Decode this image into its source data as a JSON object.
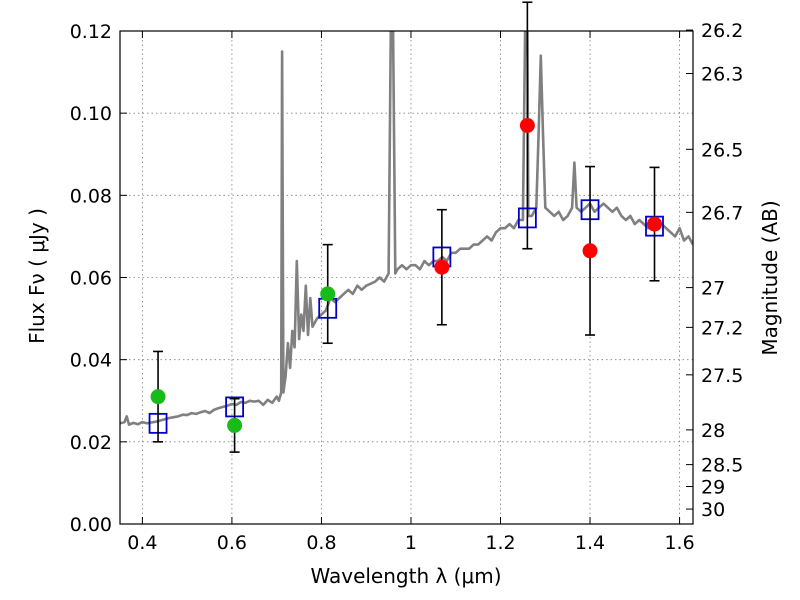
{
  "chart_data": {
    "type": "scatter",
    "xlabel": "Wavelength  λ (μm)",
    "ylabel": "Flux  Fν  ( μJy )",
    "ylabel_right": "Magnitude (AB)",
    "xlim": [
      0.35,
      1.63
    ],
    "ylim": [
      0.0,
      0.12
    ],
    "grid": true,
    "x_ticks": [
      0.4,
      0.6,
      0.8,
      1.0,
      1.2,
      1.4,
      1.6
    ],
    "x_tick_labels": [
      "0.4",
      "0.6",
      "0.8",
      "1",
      "1.2",
      "1.4",
      "1.6"
    ],
    "y_ticks": [
      0.0,
      0.02,
      0.04,
      0.06,
      0.08,
      0.1,
      0.12
    ],
    "y_tick_labels": [
      "0.00",
      "0.02",
      "0.04",
      "0.06",
      "0.08",
      "0.10",
      "0.12"
    ],
    "right_ticks": [
      {
        "label": "26.2",
        "mag": 26.2
      },
      {
        "label": "26.3",
        "mag": 26.3
      },
      {
        "label": "26.5",
        "mag": 26.5
      },
      {
        "label": "26.7",
        "mag": 26.7
      },
      {
        "label": "27",
        "mag": 27.0
      },
      {
        "label": "27.2",
        "mag": 27.2
      },
      {
        "label": "27.5",
        "mag": 27.5
      },
      {
        "label": "28",
        "mag": 28.0
      },
      {
        "label": "28.5",
        "mag": 28.5
      },
      {
        "label": "29",
        "mag": 29.0
      },
      {
        "label": "30",
        "mag": 30.0
      }
    ],
    "colors": {
      "model": "#808080",
      "green": "#18bb18",
      "red": "#ff0000",
      "box": "#0000cc",
      "errorbar": "#000000",
      "grid": "#7f7f7f"
    },
    "observations": [
      {
        "x": 0.435,
        "y": 0.031,
        "err": 0.011,
        "color": "green"
      },
      {
        "x": 0.606,
        "y": 0.024,
        "err": 0.0065,
        "color": "green"
      },
      {
        "x": 0.814,
        "y": 0.056,
        "err": 0.012,
        "color": "green"
      },
      {
        "x": 1.069,
        "y": 0.0625,
        "err": 0.014,
        "color": "red"
      },
      {
        "x": 1.26,
        "y": 0.097,
        "err": 0.03,
        "color": "red"
      },
      {
        "x": 1.4,
        "y": 0.0665,
        "err": 0.0205,
        "color": "red"
      },
      {
        "x": 1.544,
        "y": 0.073,
        "err": 0.0138,
        "color": "red"
      }
    ],
    "model_photometry": [
      {
        "x": 0.435,
        "y": 0.0245
      },
      {
        "x": 0.606,
        "y": 0.0285
      },
      {
        "x": 0.814,
        "y": 0.0525
      },
      {
        "x": 1.069,
        "y": 0.065
      },
      {
        "x": 1.26,
        "y": 0.0745
      },
      {
        "x": 1.4,
        "y": 0.0765
      },
      {
        "x": 1.544,
        "y": 0.0725
      }
    ],
    "model_spectrum": [
      [
        0.35,
        0.0245
      ],
      [
        0.36,
        0.0248
      ],
      [
        0.365,
        0.0262
      ],
      [
        0.37,
        0.0242
      ],
      [
        0.38,
        0.0246
      ],
      [
        0.39,
        0.0243
      ],
      [
        0.4,
        0.0248
      ],
      [
        0.41,
        0.0245
      ],
      [
        0.42,
        0.0247
      ],
      [
        0.43,
        0.0249
      ],
      [
        0.44,
        0.0252
      ],
      [
        0.45,
        0.0255
      ],
      [
        0.46,
        0.0258
      ],
      [
        0.47,
        0.026
      ],
      [
        0.48,
        0.0262
      ],
      [
        0.49,
        0.0266
      ],
      [
        0.5,
        0.0265
      ],
      [
        0.51,
        0.027
      ],
      [
        0.52,
        0.0268
      ],
      [
        0.53,
        0.0272
      ],
      [
        0.54,
        0.0275
      ],
      [
        0.55,
        0.027
      ],
      [
        0.56,
        0.0278
      ],
      [
        0.57,
        0.0282
      ],
      [
        0.58,
        0.0285
      ],
      [
        0.59,
        0.0288
      ],
      [
        0.6,
        0.0292
      ],
      [
        0.61,
        0.029
      ],
      [
        0.62,
        0.0297
      ],
      [
        0.63,
        0.0295
      ],
      [
        0.64,
        0.03
      ],
      [
        0.65,
        0.0298
      ],
      [
        0.66,
        0.03
      ],
      [
        0.67,
        0.029
      ],
      [
        0.68,
        0.0302
      ],
      [
        0.69,
        0.0295
      ],
      [
        0.7,
        0.031
      ],
      [
        0.705,
        0.03
      ],
      [
        0.71,
        0.032
      ],
      [
        0.712,
        0.115
      ],
      [
        0.715,
        0.032
      ],
      [
        0.72,
        0.036
      ],
      [
        0.725,
        0.044
      ],
      [
        0.73,
        0.038
      ],
      [
        0.735,
        0.047
      ],
      [
        0.74,
        0.043
      ],
      [
        0.745,
        0.064
      ],
      [
        0.75,
        0.045
      ],
      [
        0.755,
        0.051
      ],
      [
        0.76,
        0.047
      ],
      [
        0.765,
        0.058
      ],
      [
        0.77,
        0.046
      ],
      [
        0.775,
        0.055
      ],
      [
        0.78,
        0.048
      ],
      [
        0.79,
        0.05
      ],
      [
        0.8,
        0.051
      ],
      [
        0.81,
        0.052
      ],
      [
        0.82,
        0.055
      ],
      [
        0.83,
        0.054
      ],
      [
        0.84,
        0.055
      ],
      [
        0.85,
        0.056
      ],
      [
        0.86,
        0.057
      ],
      [
        0.87,
        0.056
      ],
      [
        0.88,
        0.058
      ],
      [
        0.89,
        0.057
      ],
      [
        0.9,
        0.058
      ],
      [
        0.91,
        0.0585
      ],
      [
        0.92,
        0.059
      ],
      [
        0.93,
        0.06
      ],
      [
        0.94,
        0.059
      ],
      [
        0.95,
        0.061
      ],
      [
        0.955,
        0.12
      ],
      [
        0.96,
        0.12
      ],
      [
        0.965,
        0.061
      ],
      [
        0.97,
        0.062
      ],
      [
        0.98,
        0.063
      ],
      [
        0.99,
        0.062
      ],
      [
        1.0,
        0.063
      ],
      [
        1.01,
        0.063
      ],
      [
        1.02,
        0.062
      ],
      [
        1.03,
        0.064
      ],
      [
        1.04,
        0.063
      ],
      [
        1.05,
        0.064
      ],
      [
        1.06,
        0.064
      ],
      [
        1.07,
        0.065
      ],
      [
        1.08,
        0.064
      ],
      [
        1.09,
        0.066
      ],
      [
        1.1,
        0.066
      ],
      [
        1.11,
        0.067
      ],
      [
        1.12,
        0.067
      ],
      [
        1.13,
        0.067
      ],
      [
        1.14,
        0.068
      ],
      [
        1.15,
        0.068
      ],
      [
        1.16,
        0.069
      ],
      [
        1.17,
        0.07
      ],
      [
        1.18,
        0.069
      ],
      [
        1.19,
        0.071
      ],
      [
        1.2,
        0.072
      ],
      [
        1.21,
        0.072
      ],
      [
        1.22,
        0.073
      ],
      [
        1.23,
        0.072
      ],
      [
        1.24,
        0.074
      ],
      [
        1.25,
        0.074
      ],
      [
        1.255,
        0.12
      ],
      [
        1.26,
        0.12
      ],
      [
        1.262,
        0.075
      ],
      [
        1.27,
        0.075
      ],
      [
        1.28,
        0.077
      ],
      [
        1.285,
        0.095
      ],
      [
        1.29,
        0.114
      ],
      [
        1.295,
        0.095
      ],
      [
        1.3,
        0.077
      ],
      [
        1.31,
        0.076
      ],
      [
        1.32,
        0.075
      ],
      [
        1.33,
        0.076
      ],
      [
        1.34,
        0.074
      ],
      [
        1.35,
        0.075
      ],
      [
        1.36,
        0.077
      ],
      [
        1.365,
        0.088
      ],
      [
        1.37,
        0.077
      ],
      [
        1.38,
        0.076
      ],
      [
        1.39,
        0.077
      ],
      [
        1.4,
        0.078
      ],
      [
        1.41,
        0.076
      ],
      [
        1.42,
        0.077
      ],
      [
        1.43,
        0.078
      ],
      [
        1.44,
        0.077
      ],
      [
        1.45,
        0.076
      ],
      [
        1.46,
        0.077
      ],
      [
        1.47,
        0.075
      ],
      [
        1.48,
        0.074
      ],
      [
        1.49,
        0.075
      ],
      [
        1.5,
        0.073
      ],
      [
        1.51,
        0.074
      ],
      [
        1.52,
        0.073
      ],
      [
        1.53,
        0.072
      ],
      [
        1.54,
        0.073
      ],
      [
        1.55,
        0.072
      ],
      [
        1.56,
        0.073
      ],
      [
        1.57,
        0.072
      ],
      [
        1.58,
        0.071
      ],
      [
        1.59,
        0.07
      ],
      [
        1.6,
        0.072
      ],
      [
        1.61,
        0.069
      ],
      [
        1.62,
        0.07
      ],
      [
        1.63,
        0.068
      ]
    ]
  }
}
